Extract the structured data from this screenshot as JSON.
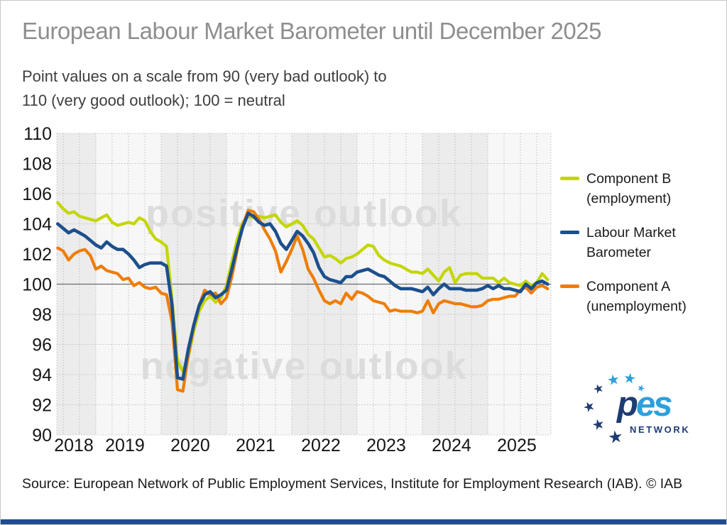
{
  "page": {
    "background": "#ffffff",
    "border_color": "#c6c6c6",
    "bottom_bar_color": "#1e4e8f"
  },
  "header": {
    "title": "European Labour Market Barometer until December 2025",
    "subtitle_line1": "Point values on a scale from 90 (very bad outlook) to",
    "subtitle_line2": "110 (very good outlook); 100 = neutral"
  },
  "watermarks": {
    "positive": "positive outlook",
    "negative": "negative outlook"
  },
  "legend": {
    "items": [
      {
        "label": "Component B (employment)",
        "color": "#c3d600"
      },
      {
        "label": "Labour Market Barometer",
        "color": "#1c4f8d"
      },
      {
        "label": "Component A (unemployment)",
        "color": "#ef7d05"
      }
    ]
  },
  "logo": {
    "name": "pes-network-logo",
    "word_p": "p",
    "word_es": "es",
    "network": "NETWORK",
    "dark_color": "#1e3c74",
    "light_color": "#2da0dc"
  },
  "source": {
    "text": "Source: European Network of Public Employment Services, Institute for Employment Research (IAB).  © IAB"
  },
  "chart_data": {
    "type": "line",
    "title": "European Labour Market Barometer until December 2025",
    "ylabel": "",
    "xlabel": "",
    "ylim": [
      90,
      110
    ],
    "yticks": [
      110,
      108,
      106,
      104,
      102,
      100,
      98,
      96,
      94,
      92,
      90
    ],
    "neutral_line": 100,
    "grid": "dotted, quarterly vertical + 2pt horizontal, alternating year bands",
    "legend_position": "right",
    "year_labels": [
      "2018",
      "2019",
      "2020",
      "2021",
      "2022",
      "2023",
      "2024",
      "2025"
    ],
    "x": [
      "2018-06",
      "2018-07",
      "2018-08",
      "2018-09",
      "2018-10",
      "2018-11",
      "2018-12",
      "2019-01",
      "2019-02",
      "2019-03",
      "2019-04",
      "2019-05",
      "2019-06",
      "2019-07",
      "2019-08",
      "2019-09",
      "2019-10",
      "2019-11",
      "2019-12",
      "2020-01",
      "2020-02",
      "2020-03",
      "2020-04",
      "2020-05",
      "2020-06",
      "2020-07",
      "2020-08",
      "2020-09",
      "2020-10",
      "2020-11",
      "2020-12",
      "2021-01",
      "2021-02",
      "2021-03",
      "2021-04",
      "2021-05",
      "2021-06",
      "2021-07",
      "2021-08",
      "2021-09",
      "2021-10",
      "2021-11",
      "2021-12",
      "2022-01",
      "2022-02",
      "2022-03",
      "2022-04",
      "2022-05",
      "2022-06",
      "2022-07",
      "2022-08",
      "2022-09",
      "2022-10",
      "2022-11",
      "2022-12",
      "2023-01",
      "2023-02",
      "2023-03",
      "2023-04",
      "2023-05",
      "2023-06",
      "2023-07",
      "2023-08",
      "2023-09",
      "2023-10",
      "2023-11",
      "2023-12",
      "2024-01",
      "2024-02",
      "2024-03",
      "2024-04",
      "2024-05",
      "2024-06",
      "2024-07",
      "2024-08",
      "2024-09",
      "2024-10",
      "2024-11",
      "2024-12",
      "2025-01",
      "2025-02",
      "2025-03",
      "2025-04",
      "2025-05",
      "2025-06",
      "2025-07",
      "2025-08",
      "2025-09",
      "2025-10",
      "2025-11",
      "2025-12"
    ],
    "series": [
      {
        "name": "Component B (employment)",
        "color": "#c3d600",
        "values": [
          105.4,
          105.0,
          104.7,
          104.8,
          104.5,
          104.4,
          104.3,
          104.2,
          104.4,
          104.6,
          104.1,
          103.9,
          104.0,
          104.1,
          104.0,
          104.4,
          104.2,
          103.5,
          103.0,
          102.8,
          102.5,
          99.0,
          94.9,
          94.2,
          95.2,
          96.9,
          98.2,
          98.9,
          99.2,
          98.8,
          99.1,
          99.9,
          101.5,
          103.0,
          104.1,
          104.5,
          104.4,
          104.5,
          104.4,
          104.5,
          104.6,
          104.1,
          103.8,
          104.0,
          104.2,
          103.9,
          103.3,
          103.0,
          102.4,
          101.8,
          101.9,
          101.7,
          101.4,
          101.7,
          101.8,
          102.0,
          102.3,
          102.6,
          102.5,
          101.9,
          101.6,
          101.4,
          101.3,
          101.2,
          101.0,
          100.8,
          100.8,
          100.7,
          101.0,
          100.6,
          100.2,
          100.8,
          101.1,
          100.1,
          100.6,
          100.7,
          100.7,
          100.7,
          100.4,
          100.4,
          100.4,
          100.1,
          100.4,
          100.1,
          100.0,
          99.9,
          100.2,
          99.9,
          100.1,
          100.7,
          100.3
        ]
      },
      {
        "name": "Labour Market Barometer",
        "color": "#1c4f8d",
        "values": [
          104.0,
          103.7,
          103.4,
          103.6,
          103.4,
          103.2,
          102.9,
          102.6,
          102.4,
          102.8,
          102.5,
          102.3,
          102.3,
          102.0,
          101.6,
          101.1,
          101.3,
          101.4,
          101.4,
          101.4,
          101.2,
          98.6,
          93.8,
          93.7,
          95.7,
          97.3,
          98.6,
          99.3,
          99.5,
          99.1,
          99.3,
          99.6,
          101.0,
          102.5,
          103.8,
          104.7,
          104.5,
          104.1,
          103.9,
          104.0,
          103.5,
          102.7,
          102.3,
          102.9,
          103.5,
          103.2,
          102.7,
          102.1,
          101.1,
          100.5,
          100.3,
          100.2,
          100.1,
          100.5,
          100.5,
          100.8,
          100.9,
          101.0,
          100.8,
          100.6,
          100.5,
          100.2,
          99.9,
          99.7,
          99.7,
          99.7,
          99.6,
          99.5,
          99.8,
          99.3,
          99.7,
          100.0,
          99.7,
          99.7,
          99.7,
          99.6,
          99.6,
          99.6,
          99.7,
          99.9,
          99.7,
          99.9,
          99.7,
          99.7,
          99.6,
          99.5,
          100.0,
          99.7,
          100.1,
          100.2,
          100.0
        ]
      },
      {
        "name": "Component A (unemployment)",
        "color": "#ef7d05",
        "values": [
          102.4,
          102.2,
          101.6,
          102.0,
          102.2,
          102.3,
          101.9,
          101.0,
          101.2,
          100.9,
          100.8,
          100.7,
          100.3,
          100.4,
          99.9,
          100.1,
          99.8,
          99.7,
          99.8,
          99.4,
          99.3,
          97.5,
          93.0,
          92.9,
          95.3,
          97.2,
          98.6,
          99.6,
          99.3,
          99.4,
          98.7,
          99.1,
          100.5,
          102.3,
          103.9,
          104.9,
          104.8,
          104.3,
          103.6,
          103.0,
          102.2,
          100.8,
          101.5,
          102.3,
          103.2,
          102.3,
          101.0,
          100.4,
          99.6,
          98.9,
          98.7,
          98.9,
          98.7,
          99.4,
          99.0,
          99.5,
          99.4,
          99.2,
          98.9,
          98.8,
          98.7,
          98.2,
          98.3,
          98.2,
          98.2,
          98.2,
          98.1,
          98.2,
          98.9,
          98.1,
          98.7,
          98.9,
          98.8,
          98.7,
          98.7,
          98.6,
          98.5,
          98.5,
          98.6,
          98.9,
          99.0,
          99.0,
          99.1,
          99.2,
          99.2,
          99.6,
          99.8,
          99.4,
          99.8,
          99.9,
          99.7
        ]
      }
    ],
    "plot_style": {
      "band_dark": "#ececec",
      "band_light": "#f7f7f7",
      "grid_color": "#b5b5b5",
      "neutral_line_color": "#6b6b6b"
    }
  }
}
